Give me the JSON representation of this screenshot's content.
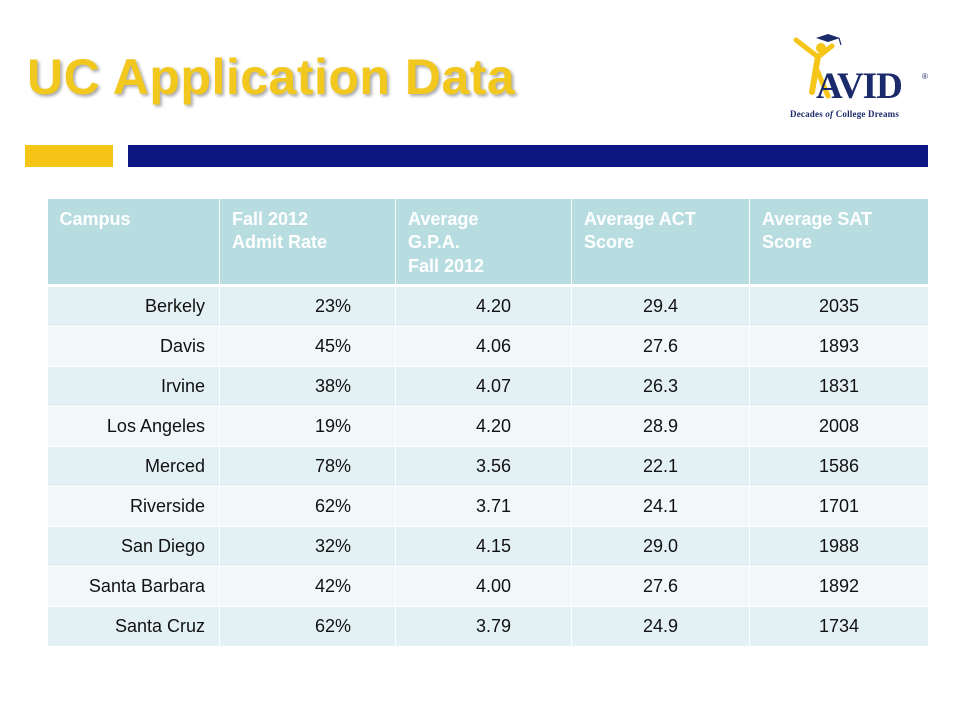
{
  "slide": {
    "title": "UC Application Data",
    "accent_yellow": "#f5c518",
    "accent_navy": "#0d1781"
  },
  "logo": {
    "name": "AVID",
    "tagline_1": "Decades ",
    "tagline_em": "of",
    "tagline_2": " College Dreams",
    "icon": "avid-person-icon"
  },
  "table": {
    "headers": [
      [
        "Campus"
      ],
      [
        "Fall 2012",
        "Admit Rate"
      ],
      [
        "Average",
        "G.P.A.",
        "Fall 2012"
      ],
      [
        "Average ACT",
        "Score"
      ],
      [
        "Average SAT",
        "Score"
      ]
    ],
    "rows": [
      [
        "Berkely",
        "23%",
        "4.20",
        "29.4",
        "2035"
      ],
      [
        "Davis",
        "45%",
        "4.06",
        "27.6",
        "1893"
      ],
      [
        "Irvine",
        "38%",
        "4.07",
        "26.3",
        "1831"
      ],
      [
        "Los Angeles",
        "19%",
        "4.20",
        "28.9",
        "2008"
      ],
      [
        "Merced",
        "78%",
        "3.56",
        "22.1",
        "1586"
      ],
      [
        "Riverside",
        "62%",
        "3.71",
        "24.1",
        "1701"
      ],
      [
        "San Diego",
        "32%",
        "4.15",
        "29.0",
        "1988"
      ],
      [
        "Santa Barbara",
        "42%",
        "4.00",
        "27.6",
        "1892"
      ],
      [
        "Santa Cruz",
        "62%",
        "3.79",
        "24.9",
        "1734"
      ]
    ]
  }
}
